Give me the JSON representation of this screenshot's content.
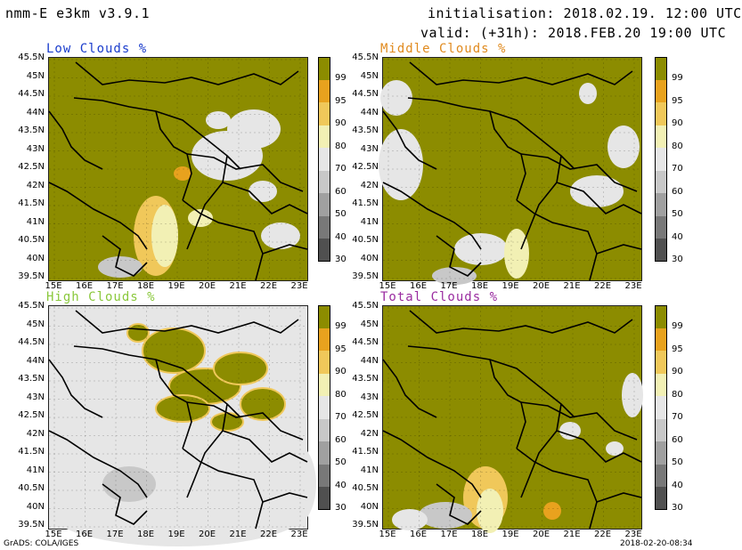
{
  "header": {
    "model": "nmm-E e3km v3.9.1",
    "init": "initialisation: 2018.02.19. 12:00 UTC",
    "valid": "valid: (+31h): 2018.FEB.20 19:00 UTC"
  },
  "panels": [
    {
      "title": "Low Clouds %",
      "color": "#1a3ccc"
    },
    {
      "title": "Middle Clouds %",
      "color": "#e08a1e"
    },
    {
      "title": "High Clouds %",
      "color": "#8ac83c"
    },
    {
      "title": "Total Clouds %",
      "color": "#9a2ca0"
    }
  ],
  "lat_ticks": [
    "45.5N",
    "45N",
    "44.5N",
    "44N",
    "43.5N",
    "43N",
    "42.5N",
    "42N",
    "41.5N",
    "41N",
    "40.5N",
    "40N",
    "39.5N"
  ],
  "lon_ticks": [
    "15E",
    "16E",
    "17E",
    "18E",
    "19E",
    "20E",
    "21E",
    "22E",
    "23E"
  ],
  "colorbar": {
    "levels": [
      "99",
      "95",
      "90",
      "80",
      "70",
      "60",
      "50",
      "40",
      "30"
    ],
    "colors": [
      "#8c8c00",
      "#e8a21e",
      "#f0c85a",
      "#f2f0b4",
      "#e6e6e6",
      "#c8c8c8",
      "#a0a0a0",
      "#787878",
      "#505050"
    ]
  },
  "footer": {
    "left": "GrADS: COLA/IGES",
    "right": "2018-02-20-08:34"
  }
}
